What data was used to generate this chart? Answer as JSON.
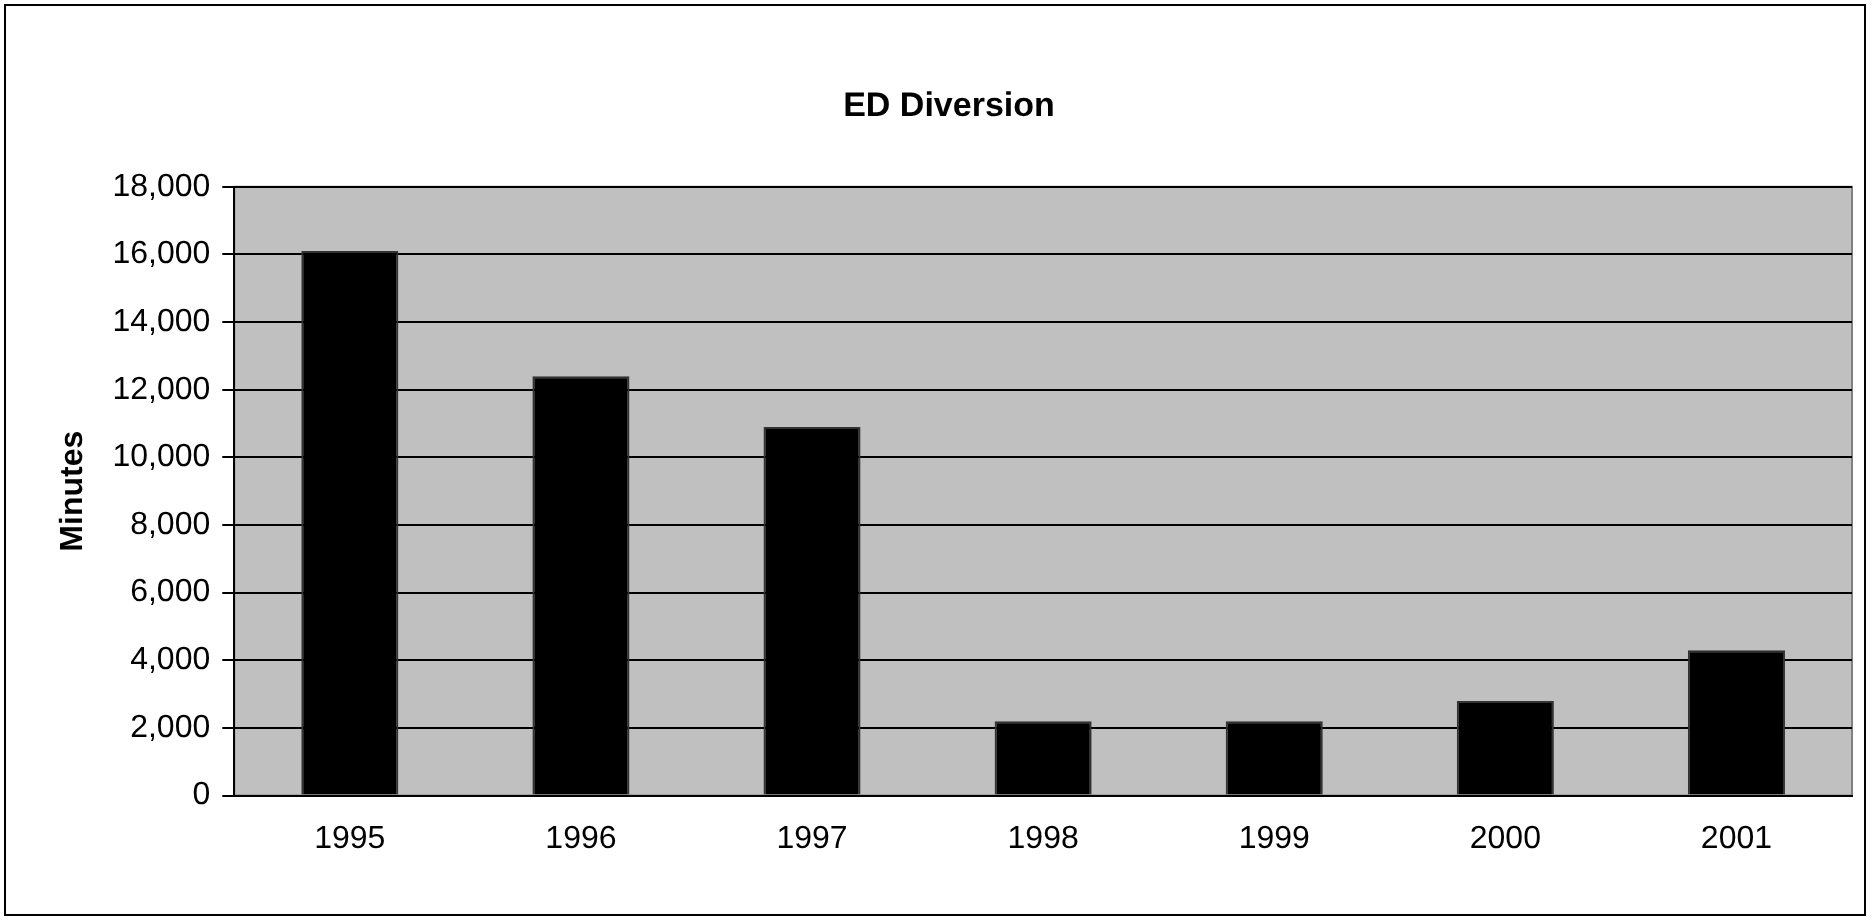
{
  "chart_data": {
    "type": "bar",
    "title": "ED Diversion",
    "ylabel": "Minutes",
    "categories": [
      "1995",
      "1996",
      "1997",
      "1998",
      "1999",
      "2000",
      "2001"
    ],
    "values": [
      16100,
      12400,
      10900,
      2200,
      2200,
      2800,
      4300
    ],
    "color": "#000000",
    "ylim": [
      0,
      18000
    ],
    "yticks": [
      {
        "value": 0,
        "label": "0"
      },
      {
        "value": 2000,
        "label": "2,000"
      },
      {
        "value": 4000,
        "label": "4,000"
      },
      {
        "value": 6000,
        "label": "6,000"
      },
      {
        "value": 8000,
        "label": "8,000"
      },
      {
        "value": 10000,
        "label": "10,000"
      },
      {
        "value": 12000,
        "label": "12,000"
      },
      {
        "value": 14000,
        "label": "14,000"
      },
      {
        "value": 16000,
        "label": "16,000"
      },
      {
        "value": 18000,
        "label": "18,000"
      }
    ],
    "grid": "y",
    "legend": false
  }
}
